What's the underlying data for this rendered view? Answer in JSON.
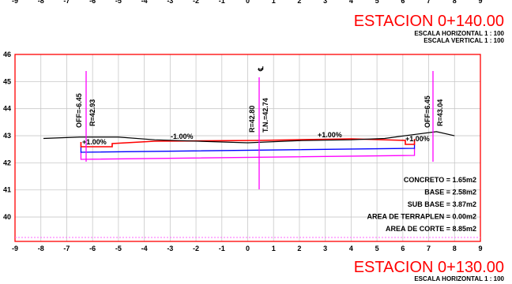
{
  "station_top": {
    "title": "ESTACION 0+140.00",
    "scale_h": "ESCALA HORIZONTAL 1 : 100",
    "scale_v": "ESCALA VERTICAL 1 : 100"
  },
  "station_bottom": {
    "title": "ESTACION 0+130.00",
    "scale_h": "ESCALA HORIZONTAL 1 : 100"
  },
  "axis": {
    "x_ticks": [
      "-9",
      "-8",
      "-7",
      "-6",
      "-5",
      "-4",
      "-3",
      "-2",
      "-1",
      "0",
      "1",
      "2",
      "3",
      "4",
      "5",
      "6",
      "7",
      "8",
      "9"
    ],
    "y_ticks": [
      "40",
      "41",
      "42",
      "43",
      "44",
      "45",
      "46"
    ],
    "xlim": [
      -9,
      9
    ],
    "ylim": [
      39.1,
      46
    ]
  },
  "profile": {
    "terrain": [
      [
        -7.9,
        42.9
      ],
      [
        -6.5,
        42.95
      ],
      [
        -5,
        42.95
      ],
      [
        -3.6,
        42.85
      ],
      [
        -2,
        42.8
      ],
      [
        0,
        42.74
      ],
      [
        2,
        42.82
      ],
      [
        4,
        42.85
      ],
      [
        5.3,
        42.9
      ],
      [
        6.4,
        43.04
      ],
      [
        7.3,
        43.15
      ],
      [
        8,
        43.0
      ]
    ],
    "subrasante_color": "#ff0000",
    "base_color": "#0000ff",
    "sub_base_color": "#ff00ff",
    "grid_color": "#c8c8c8"
  },
  "annotations": {
    "left_offset": "OFF=-6.45",
    "left_elev": "R=42.93",
    "center_elev": "R=42.80",
    "center_tn": "T.N.=42.74",
    "center_symbol": "℄",
    "right_offset": "OFF=6.45",
    "right_elev": "R=43.04",
    "slope_left_edge": "+1.00%",
    "slope_left": "-1.00%",
    "slope_right": "+1.00%",
    "slope_right_edge": "+1.00%"
  },
  "areas": [
    {
      "label": "CONCRETO",
      "value": "1.65m2"
    },
    {
      "label": "BASE",
      "value": "2.58m2"
    },
    {
      "label": "SUB BASE",
      "value": "3.87m2"
    },
    {
      "label": "AREA DE TERRAPLEN",
      "value": "0.00m2"
    },
    {
      "label": "AREA DE CORTE",
      "value": "8.85m2"
    }
  ]
}
